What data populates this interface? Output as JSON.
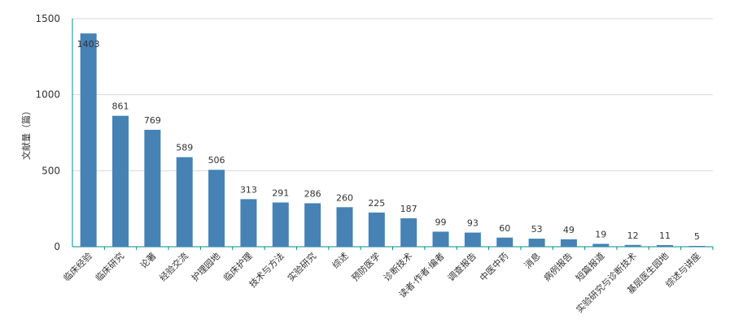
{
  "chart_data": {
    "type": "bar",
    "ylabel": "文献量（篇）",
    "ylim": [
      0,
      1500
    ],
    "yticks": [
      0,
      500,
      1000,
      1500
    ],
    "grid": true,
    "categories": [
      "临床经验",
      "临床研究",
      "论著",
      "经验交流",
      "护理园地",
      "临床护理",
      "技术与方法",
      "实验研究",
      "综述",
      "预防医学",
      "诊断技术",
      "读者·作者·编者",
      "调查报告",
      "中医中药",
      "消息",
      "病例报告",
      "短篇报道",
      "实验研究与诊断技术",
      "基层医生园地",
      "综述与讲座"
    ],
    "values": [
      1403,
      861,
      769,
      589,
      506,
      313,
      291,
      286,
      260,
      225,
      187,
      99,
      93,
      60,
      53,
      49,
      19,
      12,
      11,
      5
    ],
    "colors": {
      "bar": "#4682b4",
      "grid": "#d9d9d9",
      "axis": "#008c8c",
      "text": "#333333"
    }
  }
}
